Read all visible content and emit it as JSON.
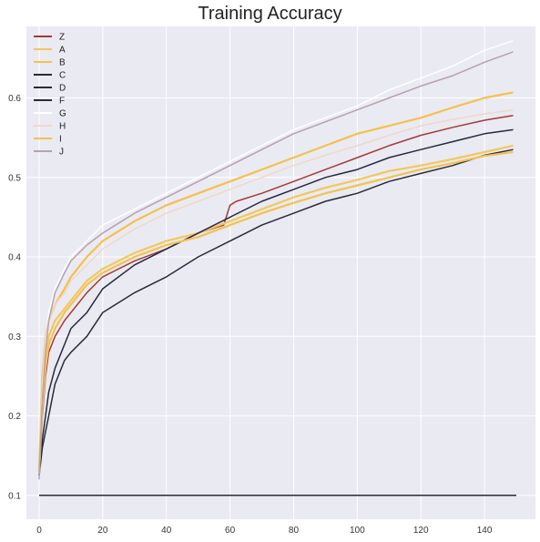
{
  "chart_data": {
    "type": "line",
    "title": "Training Accuracy",
    "xlabel": "",
    "ylabel": "",
    "xlim": [
      -4,
      156
    ],
    "ylim": [
      0.07,
      0.69
    ],
    "x_ticks": [
      0,
      20,
      40,
      60,
      80,
      100,
      120,
      140
    ],
    "y_ticks": [
      0.1,
      0.2,
      0.3,
      0.4,
      0.5,
      0.6
    ],
    "grid": true,
    "legend_position": "top-left",
    "background": "#eaeaf2",
    "series": [
      {
        "name": "Z",
        "color": "#a33a3a",
        "x": [
          0,
          1,
          2,
          3,
          5,
          8,
          10,
          15,
          20,
          30,
          40,
          50,
          58,
          60,
          62,
          70,
          80,
          90,
          100,
          110,
          120,
          130,
          140,
          149
        ],
        "y": [
          0.125,
          0.2,
          0.25,
          0.28,
          0.3,
          0.32,
          0.33,
          0.355,
          0.375,
          0.395,
          0.41,
          0.43,
          0.44,
          0.465,
          0.47,
          0.48,
          0.495,
          0.51,
          0.525,
          0.54,
          0.553,
          0.563,
          0.572,
          0.578
        ]
      },
      {
        "name": "A",
        "color": "#f2c85b",
        "x": [
          0,
          1,
          2,
          3,
          5,
          8,
          10,
          15,
          20,
          30,
          40,
          50,
          60,
          70,
          80,
          90,
          100,
          110,
          120,
          130,
          140,
          149
        ],
        "y": [
          0.13,
          0.22,
          0.27,
          0.3,
          0.32,
          0.335,
          0.345,
          0.37,
          0.385,
          0.405,
          0.42,
          0.43,
          0.445,
          0.46,
          0.475,
          0.487,
          0.497,
          0.508,
          0.515,
          0.523,
          0.532,
          0.54
        ]
      },
      {
        "name": "B",
        "color": "#f5c04a",
        "x": [
          0,
          1,
          2,
          3,
          5,
          8,
          10,
          15,
          20,
          30,
          40,
          50,
          60,
          70,
          80,
          90,
          100,
          110,
          120,
          130,
          140,
          149
        ],
        "y": [
          0.13,
          0.25,
          0.3,
          0.32,
          0.34,
          0.36,
          0.375,
          0.4,
          0.42,
          0.445,
          0.465,
          0.48,
          0.495,
          0.51,
          0.525,
          0.54,
          0.555,
          0.565,
          0.575,
          0.588,
          0.6,
          0.607
        ]
      },
      {
        "name": "C",
        "color": "#2a2a3a",
        "x": [
          0,
          1,
          2,
          3,
          5,
          8,
          10,
          15,
          20,
          30,
          40,
          50,
          60,
          70,
          80,
          90,
          100,
          110,
          120,
          130,
          140,
          149
        ],
        "y": [
          0.125,
          0.16,
          0.18,
          0.2,
          0.24,
          0.27,
          0.28,
          0.3,
          0.33,
          0.355,
          0.375,
          0.4,
          0.42,
          0.44,
          0.455,
          0.47,
          0.48,
          0.495,
          0.505,
          0.515,
          0.528,
          0.535
        ]
      },
      {
        "name": "D",
        "color": "#282840",
        "x": [
          0,
          1,
          2,
          3,
          5,
          8,
          10,
          15,
          20,
          30,
          40,
          50,
          60,
          70,
          80,
          90,
          100,
          110,
          120,
          130,
          140,
          149
        ],
        "y": [
          0.125,
          0.17,
          0.2,
          0.23,
          0.26,
          0.29,
          0.31,
          0.33,
          0.36,
          0.39,
          0.41,
          0.43,
          0.45,
          0.47,
          0.485,
          0.5,
          0.51,
          0.525,
          0.535,
          0.545,
          0.555,
          0.56
        ]
      },
      {
        "name": "F",
        "color": "#2b2b3b",
        "x": [
          0,
          150
        ],
        "y": [
          0.1,
          0.1
        ]
      },
      {
        "name": "G",
        "color": "#ffffff",
        "x": [
          0,
          1,
          2,
          3,
          5,
          8,
          10,
          15,
          20,
          30,
          40,
          50,
          60,
          70,
          80,
          90,
          100,
          110,
          120,
          130,
          140,
          149
        ],
        "y": [
          0.12,
          0.23,
          0.29,
          0.33,
          0.36,
          0.385,
          0.4,
          0.42,
          0.44,
          0.46,
          0.48,
          0.5,
          0.52,
          0.54,
          0.56,
          0.575,
          0.59,
          0.61,
          0.625,
          0.64,
          0.66,
          0.672
        ]
      },
      {
        "name": "H",
        "color": "#f0d8c8",
        "x": [
          0,
          1,
          2,
          3,
          5,
          8,
          10,
          15,
          20,
          30,
          40,
          50,
          60,
          70,
          80,
          90,
          100,
          110,
          120,
          130,
          140,
          149
        ],
        "y": [
          0.13,
          0.24,
          0.3,
          0.32,
          0.34,
          0.355,
          0.37,
          0.39,
          0.41,
          0.435,
          0.455,
          0.47,
          0.485,
          0.5,
          0.515,
          0.528,
          0.54,
          0.553,
          0.565,
          0.573,
          0.58,
          0.585
        ]
      },
      {
        "name": "I",
        "color": "#f3c24f",
        "x": [
          0,
          1,
          2,
          3,
          5,
          8,
          10,
          15,
          20,
          30,
          40,
          50,
          60,
          70,
          80,
          90,
          100,
          110,
          120,
          130,
          140,
          149
        ],
        "y": [
          0.13,
          0.21,
          0.26,
          0.29,
          0.31,
          0.33,
          0.34,
          0.365,
          0.38,
          0.4,
          0.415,
          0.425,
          0.44,
          0.455,
          0.468,
          0.48,
          0.49,
          0.5,
          0.51,
          0.518,
          0.527,
          0.532
        ]
      },
      {
        "name": "J",
        "color": "#b8a0b0",
        "x": [
          0,
          1,
          2,
          3,
          5,
          8,
          10,
          15,
          20,
          30,
          40,
          50,
          60,
          70,
          80,
          90,
          100,
          110,
          120,
          130,
          140,
          149
        ],
        "y": [
          0.12,
          0.22,
          0.28,
          0.32,
          0.355,
          0.38,
          0.395,
          0.415,
          0.43,
          0.455,
          0.475,
          0.495,
          0.515,
          0.535,
          0.555,
          0.57,
          0.585,
          0.6,
          0.615,
          0.628,
          0.645,
          0.658
        ]
      }
    ]
  }
}
